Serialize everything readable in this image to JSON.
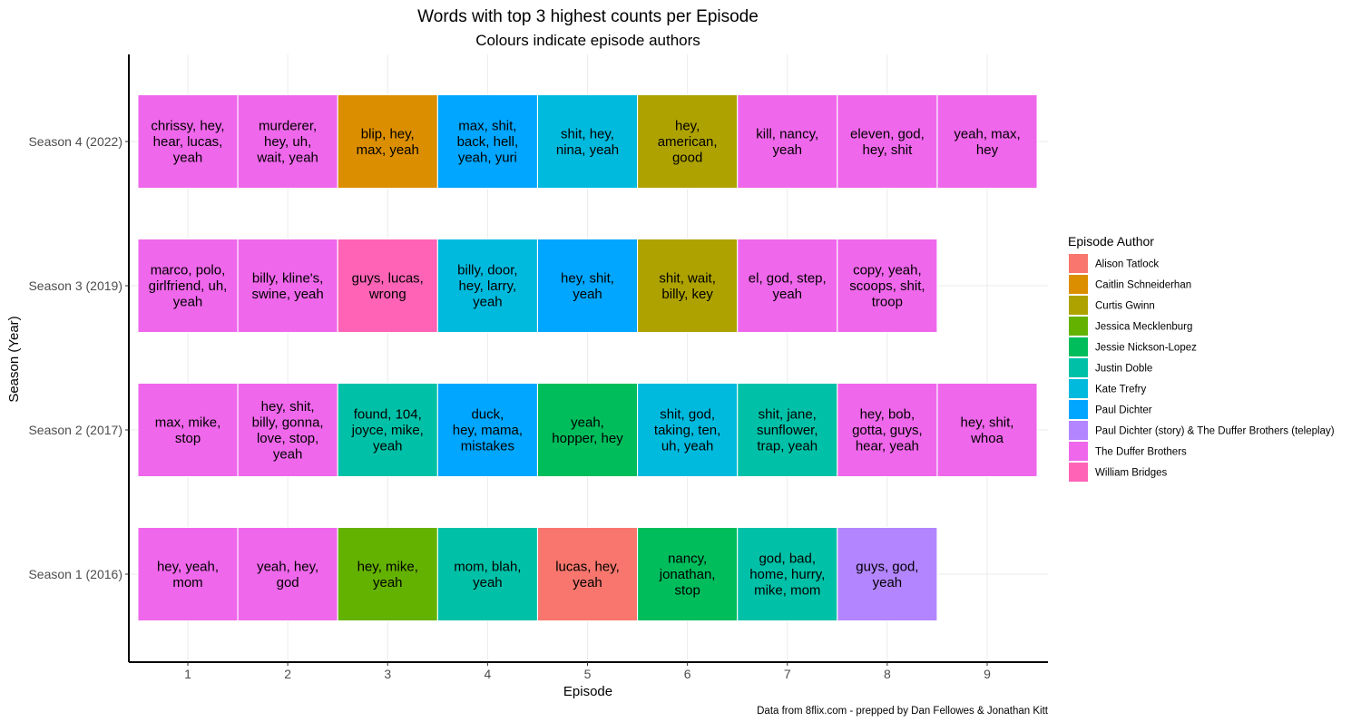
{
  "chart_data": {
    "type": "heatmap",
    "title": "Words with top 3 highest counts per Episode",
    "subtitle": "Colours indicate episode authors",
    "xlabel": "Episode",
    "ylabel": "Season (Year)",
    "caption": "Data from 8flix.com - prepped by Dan Fellowes & Jonathan Kitt",
    "x_categories": [
      "1",
      "2",
      "3",
      "4",
      "5",
      "6",
      "7",
      "8",
      "9"
    ],
    "y_categories": [
      "Season 1 (2016)",
      "Season 2 (2017)",
      "Season 3 (2019)",
      "Season 4 (2022)"
    ],
    "legend_title": "Episode Author",
    "legend_placement": "right",
    "authors": [
      {
        "name": "Alison Tatlock",
        "color": "#F8766D"
      },
      {
        "name": "Caitlin Schneiderhan",
        "color": "#DB8E00"
      },
      {
        "name": "Curtis Gwinn",
        "color": "#AEA200"
      },
      {
        "name": "Jessica Mecklenburg",
        "color": "#64B200"
      },
      {
        "name": "Jessie Nickson-Lopez",
        "color": "#00BD5C"
      },
      {
        "name": "Justin Doble",
        "color": "#00C1A7"
      },
      {
        "name": "Kate Trefry",
        "color": "#00BADE"
      },
      {
        "name": "Paul Dichter",
        "color": "#00A6FF"
      },
      {
        "name": "Paul Dichter (story) & The Duffer Brothers (teleplay)",
        "color": "#B385FF"
      },
      {
        "name": "The Duffer Brothers",
        "color": "#EF67EB"
      },
      {
        "name": "William Bridges",
        "color": "#FF63B6"
      }
    ],
    "cells": [
      {
        "season": "Season 4 (2022)",
        "episode": 1,
        "author": "The Duffer Brothers",
        "lines": [
          "chrissy, hey,",
          "hear, lucas,",
          "yeah"
        ]
      },
      {
        "season": "Season 4 (2022)",
        "episode": 2,
        "author": "The Duffer Brothers",
        "lines": [
          "murderer,",
          "hey, uh,",
          "wait, yeah"
        ]
      },
      {
        "season": "Season 4 (2022)",
        "episode": 3,
        "author": "Caitlin Schneiderhan",
        "lines": [
          "blip, hey,",
          "max, yeah"
        ]
      },
      {
        "season": "Season 4 (2022)",
        "episode": 4,
        "author": "Paul Dichter",
        "lines": [
          "max, shit,",
          "back, hell,",
          "yeah, yuri"
        ]
      },
      {
        "season": "Season 4 (2022)",
        "episode": 5,
        "author": "Kate Trefry",
        "lines": [
          "shit, hey,",
          "nina, yeah"
        ]
      },
      {
        "season": "Season 4 (2022)",
        "episode": 6,
        "author": "Curtis Gwinn",
        "lines": [
          "hey,",
          "american,",
          "good"
        ]
      },
      {
        "season": "Season 4 (2022)",
        "episode": 7,
        "author": "The Duffer Brothers",
        "lines": [
          "kill, nancy,",
          "yeah"
        ]
      },
      {
        "season": "Season 4 (2022)",
        "episode": 8,
        "author": "The Duffer Brothers",
        "lines": [
          "eleven, god,",
          "hey, shit"
        ]
      },
      {
        "season": "Season 4 (2022)",
        "episode": 9,
        "author": "The Duffer Brothers",
        "lines": [
          "yeah, max,",
          "hey"
        ]
      },
      {
        "season": "Season 3 (2019)",
        "episode": 1,
        "author": "The Duffer Brothers",
        "lines": [
          "marco, polo,",
          "girlfriend, uh,",
          "yeah"
        ]
      },
      {
        "season": "Season 3 (2019)",
        "episode": 2,
        "author": "The Duffer Brothers",
        "lines": [
          "billy, kline's,",
          "swine, yeah"
        ]
      },
      {
        "season": "Season 3 (2019)",
        "episode": 3,
        "author": "William Bridges",
        "lines": [
          "guys, lucas,",
          "wrong"
        ]
      },
      {
        "season": "Season 3 (2019)",
        "episode": 4,
        "author": "Kate Trefry",
        "lines": [
          "billy, door,",
          "hey, larry,",
          "yeah"
        ]
      },
      {
        "season": "Season 3 (2019)",
        "episode": 5,
        "author": "Paul Dichter",
        "lines": [
          "hey, shit,",
          "yeah"
        ]
      },
      {
        "season": "Season 3 (2019)",
        "episode": 6,
        "author": "Curtis Gwinn",
        "lines": [
          "shit, wait,",
          "billy, key"
        ]
      },
      {
        "season": "Season 3 (2019)",
        "episode": 7,
        "author": "The Duffer Brothers",
        "lines": [
          "el, god, step,",
          "yeah"
        ]
      },
      {
        "season": "Season 3 (2019)",
        "episode": 8,
        "author": "The Duffer Brothers",
        "lines": [
          "copy, yeah,",
          "scoops, shit,",
          "troop"
        ]
      },
      {
        "season": "Season 2 (2017)",
        "episode": 1,
        "author": "The Duffer Brothers",
        "lines": [
          "max, mike,",
          "stop"
        ]
      },
      {
        "season": "Season 2 (2017)",
        "episode": 2,
        "author": "The Duffer Brothers",
        "lines": [
          "hey, shit,",
          "billy, gonna,",
          "love, stop,",
          "yeah"
        ]
      },
      {
        "season": "Season 2 (2017)",
        "episode": 3,
        "author": "Justin Doble",
        "lines": [
          "found, 104,",
          "joyce, mike,",
          "yeah"
        ]
      },
      {
        "season": "Season 2 (2017)",
        "episode": 4,
        "author": "Paul Dichter",
        "lines": [
          "duck,",
          "hey, mama,",
          "mistakes"
        ]
      },
      {
        "season": "Season 2 (2017)",
        "episode": 5,
        "author": "Jessie Nickson-Lopez",
        "lines": [
          "yeah,",
          "hopper, hey"
        ]
      },
      {
        "season": "Season 2 (2017)",
        "episode": 6,
        "author": "Kate Trefry",
        "lines": [
          "shit, god,",
          "taking, ten,",
          "uh, yeah"
        ]
      },
      {
        "season": "Season 2 (2017)",
        "episode": 7,
        "author": "Justin Doble",
        "lines": [
          "shit, jane,",
          "sunflower,",
          "trap, yeah"
        ]
      },
      {
        "season": "Season 2 (2017)",
        "episode": 8,
        "author": "The Duffer Brothers",
        "lines": [
          "hey, bob,",
          "gotta, guys,",
          "hear, yeah"
        ]
      },
      {
        "season": "Season 2 (2017)",
        "episode": 9,
        "author": "The Duffer Brothers",
        "lines": [
          "hey, shit,",
          "whoa"
        ]
      },
      {
        "season": "Season 1 (2016)",
        "episode": 1,
        "author": "The Duffer Brothers",
        "lines": [
          "hey, yeah,",
          "mom"
        ]
      },
      {
        "season": "Season 1 (2016)",
        "episode": 2,
        "author": "The Duffer Brothers",
        "lines": [
          "yeah, hey,",
          "god"
        ]
      },
      {
        "season": "Season 1 (2016)",
        "episode": 3,
        "author": "Jessica Mecklenburg",
        "lines": [
          "hey, mike,",
          "yeah"
        ]
      },
      {
        "season": "Season 1 (2016)",
        "episode": 4,
        "author": "Justin Doble",
        "lines": [
          "mom, blah,",
          "yeah"
        ]
      },
      {
        "season": "Season 1 (2016)",
        "episode": 5,
        "author": "Alison Tatlock",
        "lines": [
          "lucas, hey,",
          "yeah"
        ]
      },
      {
        "season": "Season 1 (2016)",
        "episode": 6,
        "author": "Jessie Nickson-Lopez",
        "lines": [
          "nancy,",
          "jonathan,",
          "stop"
        ]
      },
      {
        "season": "Season 1 (2016)",
        "episode": 7,
        "author": "Justin Doble",
        "lines": [
          "god, bad,",
          "home, hurry,",
          "mike, mom"
        ]
      },
      {
        "season": "Season 1 (2016)",
        "episode": 8,
        "author": "Paul Dichter (story) & The Duffer Brothers (teleplay)",
        "lines": [
          "guys, god,",
          "yeah"
        ]
      }
    ]
  }
}
